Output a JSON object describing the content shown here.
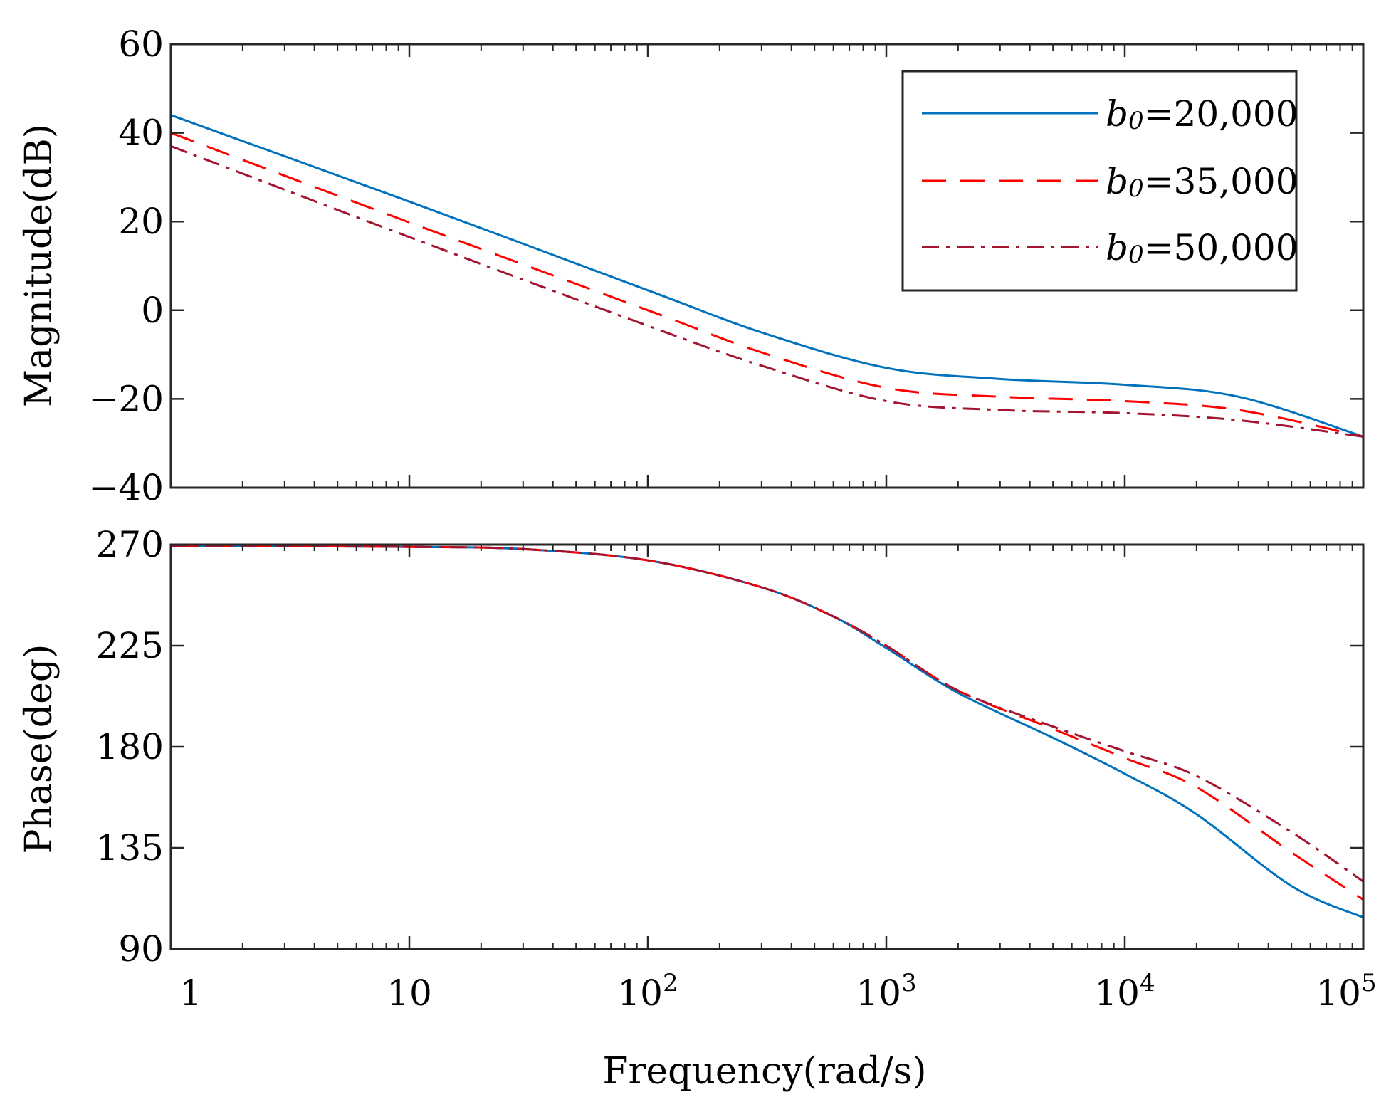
{
  "chart_data": [
    {
      "type": "line",
      "panel": "magnitude",
      "ylabel": "Magnitude(dB)",
      "xscale": "log",
      "xlim": [
        1,
        100000
      ],
      "ylim": [
        -40,
        60
      ],
      "yticks": [
        60,
        40,
        20,
        0,
        -20,
        -40
      ],
      "ytick_labels": [
        "60",
        "40",
        "20",
        "0",
        "−20",
        "−40"
      ],
      "grid": false,
      "legend": {
        "position": "top-right",
        "entries": [
          {
            "prefix": "b",
            "sub": "0",
            "rest": "=20,000"
          },
          {
            "prefix": "b",
            "sub": "0",
            "rest": "=35,000"
          },
          {
            "prefix": "b",
            "sub": "0",
            "rest": "=50,000"
          }
        ]
      },
      "series": [
        {
          "name": "b0=20,000",
          "color": "#0072BD",
          "style": "solid",
          "x": [
            1,
            10,
            100,
            300,
            1000,
            3000,
            10000,
            30000,
            100000
          ],
          "y": [
            44,
            24.5,
            4.5,
            -5,
            -13,
            -15.5,
            -16.8,
            -19.5,
            -28.5
          ]
        },
        {
          "name": "b0=35,000",
          "color": "#FF0000",
          "style": "dashed",
          "x": [
            1,
            10,
            100,
            300,
            1000,
            3000,
            10000,
            30000,
            100000
          ],
          "y": [
            40,
            19.8,
            0,
            -9.5,
            -17.5,
            -19.5,
            -20.5,
            -22.5,
            -28.5
          ]
        },
        {
          "name": "b0=50,000",
          "color": "#A2142F",
          "style": "dashdot",
          "x": [
            1,
            10,
            100,
            300,
            1000,
            3000,
            10000,
            30000,
            100000
          ],
          "y": [
            37,
            16.5,
            -3.5,
            -12.5,
            -20.5,
            -22.5,
            -23.2,
            -24.8,
            -28.5
          ]
        }
      ]
    },
    {
      "type": "line",
      "panel": "phase",
      "ylabel": "Phase(deg)",
      "xlabel": "Frequency(rad/s)",
      "xscale": "log",
      "xlim": [
        1,
        100000
      ],
      "ylim": [
        90,
        270
      ],
      "yticks": [
        270,
        225,
        180,
        135,
        90
      ],
      "ytick_labels": [
        "270",
        "225",
        "180",
        "135",
        "90"
      ],
      "xticks": [
        1,
        10,
        100,
        1000,
        10000,
        100000
      ],
      "xtick_labels": [
        {
          "base": "1",
          "exp": ""
        },
        {
          "base": "10",
          "exp": ""
        },
        {
          "base": "10",
          "exp": "2"
        },
        {
          "base": "10",
          "exp": "3"
        },
        {
          "base": "10",
          "exp": "4"
        },
        {
          "base": "10",
          "exp": "5"
        }
      ],
      "grid": false,
      "series": [
        {
          "name": "b0=20,000",
          "color": "#0072BD",
          "style": "solid",
          "x": [
            1,
            10,
            30,
            100,
            300,
            600,
            1000,
            2000,
            5000,
            10000,
            20000,
            50000,
            100000
          ],
          "y": [
            269.5,
            269,
            268,
            263,
            251,
            238,
            224,
            204,
            184,
            168,
            150,
            118,
            104
          ]
        },
        {
          "name": "b0=35,000",
          "color": "#FF0000",
          "style": "dashed",
          "x": [
            1,
            10,
            30,
            100,
            300,
            600,
            1000,
            2000,
            5000,
            10000,
            20000,
            50000,
            100000
          ],
          "y": [
            269.5,
            269,
            268,
            263,
            251,
            238,
            225,
            205,
            188,
            175,
            162,
            133,
            112
          ]
        },
        {
          "name": "b0=50,000",
          "color": "#A2142F",
          "style": "dashdot",
          "x": [
            1,
            10,
            30,
            100,
            300,
            600,
            1000,
            2000,
            5000,
            10000,
            20000,
            50000,
            100000
          ],
          "y": [
            269.5,
            269,
            268,
            263,
            251,
            238,
            225,
            205,
            189,
            178,
            167,
            142,
            120
          ]
        }
      ]
    }
  ]
}
